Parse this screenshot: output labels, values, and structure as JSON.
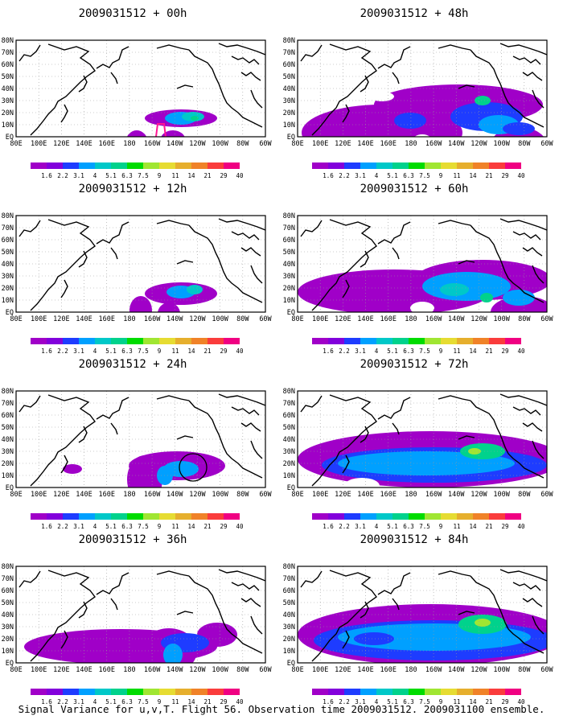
{
  "panels": [
    {
      "id": "p00",
      "title": "2009031512 + 00h",
      "col": 0,
      "row": 0,
      "blobs": [
        {
          "cx": 205,
          "cy": 97,
          "rx": 45,
          "ry": 11,
          "level": 0
        },
        {
          "cx": 150,
          "cy": 128,
          "rx": 14,
          "ry": 16,
          "level": 0
        },
        {
          "cx": 150,
          "cy": 128,
          "rx": 7,
          "ry": 7,
          "level": 3
        },
        {
          "cx": 195,
          "cy": 125,
          "rx": 16,
          "ry": 13,
          "level": 0
        },
        {
          "cx": 195,
          "cy": 127,
          "rx": 5,
          "ry": 6,
          "level": 3
        },
        {
          "cx": 205,
          "cy": 97,
          "rx": 20,
          "ry": 8,
          "level": 3
        },
        {
          "cx": 220,
          "cy": 95,
          "rx": 14,
          "ry": 6,
          "level": 4
        },
        {
          "cx": 222,
          "cy": 97,
          "rx": 5,
          "ry": 3,
          "level": 5
        }
      ],
      "annotation": "box"
    },
    {
      "id": "p48",
      "title": "2009031512 + 48h",
      "col": 1,
      "row": 0,
      "blobs": [
        {
          "cx": 105,
          "cy": 115,
          "rx": 100,
          "ry": 35,
          "level": 0
        },
        {
          "cx": 200,
          "cy": 80,
          "rx": 105,
          "ry": 25,
          "level": 0
        },
        {
          "cx": 275,
          "cy": 130,
          "rx": 35,
          "ry": 22,
          "level": 0
        },
        {
          "cx": 235,
          "cy": 95,
          "rx": 45,
          "ry": 18,
          "level": 2
        },
        {
          "cx": 250,
          "cy": 105,
          "rx": 25,
          "ry": 12,
          "level": 3
        },
        {
          "cx": 140,
          "cy": 100,
          "rx": 20,
          "ry": 10,
          "level": 2
        },
        {
          "cx": 275,
          "cy": 110,
          "rx": 20,
          "ry": 8,
          "level": 2
        },
        {
          "cx": 230,
          "cy": 75,
          "rx": 10,
          "ry": 6,
          "level": 5
        },
        {
          "cx": 155,
          "cy": 126,
          "rx": 13,
          "ry": 9,
          "level": -1
        },
        {
          "cx": 40,
          "cy": 70,
          "rx": 18,
          "ry": 8,
          "level": -1
        },
        {
          "cx": 105,
          "cy": 70,
          "rx": 15,
          "ry": 6,
          "level": -1
        }
      ]
    },
    {
      "id": "p12",
      "title": "2009031512 + 12h",
      "col": 0,
      "row": 1,
      "blobs": [
        {
          "cx": 205,
          "cy": 97,
          "rx": 45,
          "ry": 14,
          "level": 0
        },
        {
          "cx": 155,
          "cy": 118,
          "rx": 14,
          "ry": 18,
          "level": 0
        },
        {
          "cx": 190,
          "cy": 122,
          "rx": 14,
          "ry": 14,
          "level": 0
        },
        {
          "cx": 205,
          "cy": 95,
          "rx": 18,
          "ry": 8,
          "level": 3
        },
        {
          "cx": 222,
          "cy": 92,
          "rx": 10,
          "ry": 6,
          "level": 4
        }
      ]
    },
    {
      "id": "p60",
      "title": "2009031512 + 60h",
      "col": 1,
      "row": 1,
      "blobs": [
        {
          "cx": 120,
          "cy": 95,
          "rx": 120,
          "ry": 28,
          "level": 0
        },
        {
          "cx": 230,
          "cy": 80,
          "rx": 85,
          "ry": 25,
          "level": 0
        },
        {
          "cx": 280,
          "cy": 120,
          "rx": 40,
          "ry": 20,
          "level": 0
        },
        {
          "cx": 210,
          "cy": 88,
          "rx": 55,
          "ry": 18,
          "level": 3
        },
        {
          "cx": 195,
          "cy": 92,
          "rx": 18,
          "ry": 8,
          "level": 4
        },
        {
          "cx": 235,
          "cy": 102,
          "rx": 8,
          "ry": 6,
          "level": 5
        },
        {
          "cx": 275,
          "cy": 102,
          "rx": 20,
          "ry": 10,
          "level": 3
        },
        {
          "cx": 155,
          "cy": 115,
          "rx": 15,
          "ry": 8,
          "level": -1
        }
      ]
    },
    {
      "id": "p24",
      "title": "2009031512 + 24h",
      "col": 0,
      "row": 2,
      "blobs": [
        {
          "cx": 200,
          "cy": 93,
          "rx": 60,
          "ry": 18,
          "level": 0
        },
        {
          "cx": 160,
          "cy": 110,
          "rx": 22,
          "ry": 30,
          "level": 0
        },
        {
          "cx": 70,
          "cy": 97,
          "rx": 12,
          "ry": 6,
          "level": 0
        },
        {
          "cx": 205,
          "cy": 97,
          "rx": 22,
          "ry": 10,
          "level": 3
        },
        {
          "cx": 185,
          "cy": 105,
          "rx": 10,
          "ry": 12,
          "level": 3
        }
      ],
      "annotation": "circle"
    },
    {
      "id": "p72",
      "title": "2009031512 + 72h",
      "col": 1,
      "row": 2,
      "blobs": [
        {
          "cx": 165,
          "cy": 85,
          "rx": 165,
          "ry": 35,
          "level": 0
        },
        {
          "cx": 170,
          "cy": 92,
          "rx": 140,
          "ry": 22,
          "level": 2
        },
        {
          "cx": 160,
          "cy": 90,
          "rx": 110,
          "ry": 15,
          "level": 3
        },
        {
          "cx": 230,
          "cy": 75,
          "rx": 28,
          "ry": 10,
          "level": 5
        },
        {
          "cx": 220,
          "cy": 75,
          "rx": 8,
          "ry": 4,
          "level": 7
        },
        {
          "cx": 80,
          "cy": 118,
          "rx": 22,
          "ry": 10,
          "level": -1
        }
      ]
    },
    {
      "id": "p36",
      "title": "2009031512 + 36h",
      "col": 0,
      "row": 3,
      "blobs": [
        {
          "cx": 130,
          "cy": 100,
          "rx": 120,
          "ry": 22,
          "level": 0
        },
        {
          "cx": 190,
          "cy": 105,
          "rx": 35,
          "ry": 28,
          "level": 0
        },
        {
          "cx": 250,
          "cy": 85,
          "rx": 25,
          "ry": 15,
          "level": 0
        },
        {
          "cx": 210,
          "cy": 95,
          "rx": 30,
          "ry": 12,
          "level": 2
        },
        {
          "cx": 195,
          "cy": 110,
          "rx": 12,
          "ry": 14,
          "level": 3
        }
      ]
    },
    {
      "id": "p84",
      "title": "2009031512 + 84h",
      "col": 1,
      "row": 3,
      "blobs": [
        {
          "cx": 165,
          "cy": 85,
          "rx": 165,
          "ry": 38,
          "level": 0
        },
        {
          "cx": 170,
          "cy": 92,
          "rx": 150,
          "ry": 25,
          "level": 2
        },
        {
          "cx": 170,
          "cy": 88,
          "rx": 120,
          "ry": 17,
          "level": 3
        },
        {
          "cx": 230,
          "cy": 72,
          "rx": 30,
          "ry": 12,
          "level": 5
        },
        {
          "cx": 230,
          "cy": 70,
          "rx": 10,
          "ry": 5,
          "level": 7
        },
        {
          "cx": 95,
          "cy": 90,
          "rx": 25,
          "ry": 8,
          "level": 2
        }
      ]
    }
  ],
  "lat_labels": [
    "80N",
    "70N",
    "60N",
    "50N",
    "40N",
    "30N",
    "20N",
    "10N",
    "EQ"
  ],
  "lon_labels": [
    "80E",
    "100E",
    "120E",
    "140E",
    "160E",
    "180",
    "160W",
    "140W",
    "120W",
    "100W",
    "80W",
    "60W"
  ],
  "colorbar": {
    "labels": [
      "1.6",
      "2.2",
      "3.1",
      "4",
      "5.1",
      "6.3",
      "7.5",
      "9",
      "11",
      "14",
      "21",
      "29",
      "40"
    ],
    "colors": [
      "#a000c8",
      "#8200dc",
      "#1e3cff",
      "#00a0ff",
      "#00c8c8",
      "#00d28c",
      "#00dc00",
      "#a0e632",
      "#e6dc32",
      "#e6af2d",
      "#f08228",
      "#fa3c3c",
      "#f00082"
    ]
  },
  "footer": "Signal Variance for u,v,T. Flight 56. Observation time 2009031512. 2009031100 ensemble."
}
